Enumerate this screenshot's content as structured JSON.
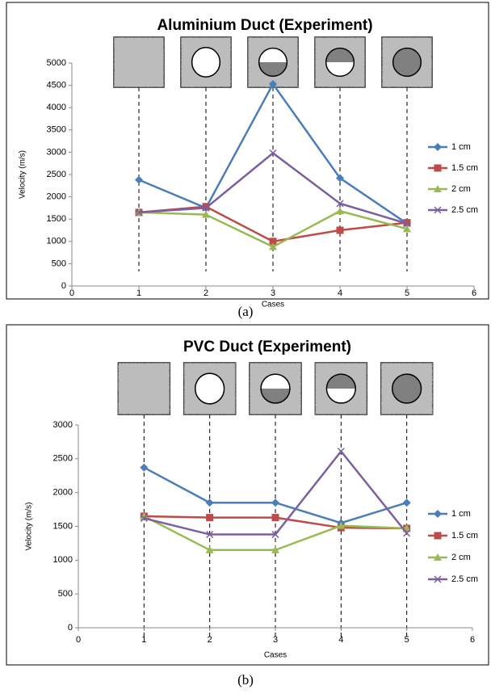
{
  "chart_data": [
    {
      "type": "line",
      "title": "Aluminium Duct (Experiment)",
      "x_label": "Cases",
      "y_label": "Velocity (m/s)",
      "caption": "(a)",
      "x": [
        1,
        2,
        3,
        4,
        5
      ],
      "xlim": [
        0,
        6
      ],
      "xticks": [
        0,
        1,
        2,
        3,
        4,
        5,
        6
      ],
      "ylim": [
        0,
        5000
      ],
      "yticks": [
        0,
        500,
        1000,
        1500,
        2000,
        2500,
        3000,
        3500,
        4000,
        4500,
        5000
      ],
      "legend": "right",
      "grid": false,
      "series": [
        {
          "name": "1 cm",
          "color": "#4a7ebb",
          "marker": "diamond",
          "values": [
            2380,
            1750,
            4530,
            2420,
            1400
          ]
        },
        {
          "name": "1.5 cm",
          "color": "#be4b48",
          "marker": "square",
          "values": [
            1650,
            1780,
            1000,
            1250,
            1420
          ]
        },
        {
          "name": "2 cm",
          "color": "#98b954",
          "marker": "triangle",
          "values": [
            1650,
            1600,
            880,
            1680,
            1280
          ]
        },
        {
          "name": "2.5 cm",
          "color": "#7d5fa0",
          "marker": "x",
          "values": [
            1650,
            1750,
            2980,
            1850,
            1400
          ]
        }
      ]
    },
    {
      "type": "line",
      "title": "PVC Duct (Experiment)",
      "x_label": "Cases",
      "y_label": "Velocity (m/s)",
      "caption": "(b)",
      "x": [
        1,
        2,
        3,
        4,
        5
      ],
      "xlim": [
        0,
        6
      ],
      "xticks": [
        0,
        1,
        2,
        3,
        4,
        5,
        6
      ],
      "ylim": [
        0,
        3000
      ],
      "yticks": [
        0,
        500,
        1000,
        1500,
        2000,
        2500,
        3000
      ],
      "legend": "right",
      "grid": false,
      "series": [
        {
          "name": "1 cm",
          "color": "#4a7ebb",
          "marker": "diamond",
          "values": [
            2370,
            1850,
            1850,
            1550,
            1850
          ]
        },
        {
          "name": "1.5 cm",
          "color": "#be4b48",
          "marker": "square",
          "values": [
            1650,
            1630,
            1630,
            1480,
            1470
          ]
        },
        {
          "name": "2 cm",
          "color": "#98b954",
          "marker": "triangle",
          "values": [
            1650,
            1150,
            1150,
            1510,
            1470
          ]
        },
        {
          "name": "2.5 cm",
          "color": "#7d5fa0",
          "marker": "x",
          "values": [
            1620,
            1380,
            1380,
            2610,
            1400
          ]
        }
      ]
    }
  ]
}
